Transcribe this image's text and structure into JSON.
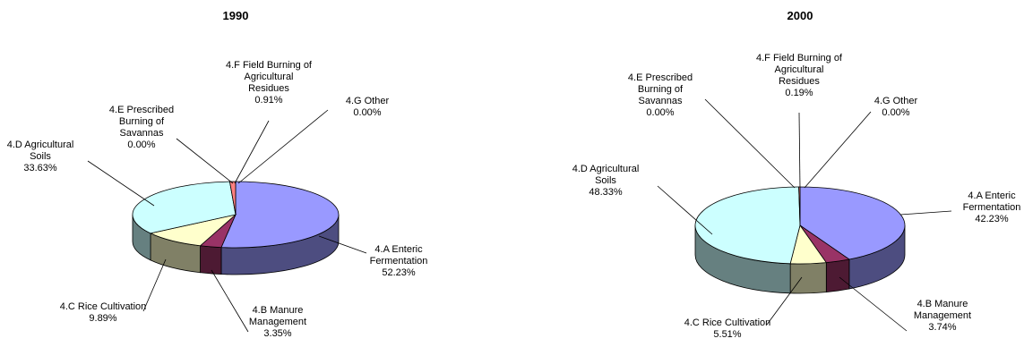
{
  "chart_data": [
    {
      "type": "pie",
      "title": "1990",
      "categories": [
        "4.A Enteric Fermentation",
        "4.B Manure Management",
        "4.C Rice Cultivation",
        "4.D Agricultural Soils",
        "4.E Prescribed Burning of Savannas",
        "4.F Field Burning of Agricultural Residues",
        "4.G Other"
      ],
      "values": [
        52.23,
        3.35,
        9.89,
        33.63,
        0.0,
        0.91,
        0.0
      ],
      "value_labels": [
        "52.23%",
        "3.35%",
        "9.89%",
        "33.63%",
        "0.00%",
        "0.91%",
        "0.00%"
      ],
      "label_lines": [
        [
          "4.A Enteric",
          "Fermentation"
        ],
        [
          "4.B Manure",
          "Management"
        ],
        [
          "4.C Rice Cultivation"
        ],
        [
          "4.D Agricultural",
          "Soils"
        ],
        [
          "4.E Prescribed",
          "Burning of",
          "Savannas"
        ],
        [
          "4.F Field Burning of",
          "Agricultural",
          "Residues"
        ],
        [
          "4.G Other"
        ]
      ],
      "colors": [
        "#9999ff",
        "#993366",
        "#ffffcc",
        "#ccffff",
        "#660066",
        "#ff8080",
        "#0066cc"
      ],
      "style": "3d-pie"
    },
    {
      "type": "pie",
      "title": "2000",
      "categories": [
        "4.A Enteric Fermentation",
        "4.B Manure Management",
        "4.C Rice Cultivation",
        "4.D Agricultural Soils",
        "4.E Prescribed Burning of Savannas",
        "4.F Field Burning of Agricultural Residues",
        "4.G Other"
      ],
      "values": [
        42.23,
        3.74,
        5.51,
        48.33,
        0.0,
        0.19,
        0.0
      ],
      "value_labels": [
        "42.23%",
        "3.74%",
        "5.51%",
        "48.33%",
        "0.00%",
        "0.19%",
        "0.00%"
      ],
      "label_lines": [
        [
          "4.A Enteric",
          "Fermentation"
        ],
        [
          "4.B Manure",
          "Management"
        ],
        [
          "4.C Rice Cultivation"
        ],
        [
          "4.D Agricultural",
          "Soils"
        ],
        [
          "4.E Prescribed",
          "Burning of",
          "Savannas"
        ],
        [
          "4.F Field Burning of",
          "Agricultural",
          "Residues"
        ],
        [
          "4.G Other"
        ]
      ],
      "colors": [
        "#9999ff",
        "#993366",
        "#ffffcc",
        "#ccffff",
        "#660066",
        "#ff8080",
        "#0066cc"
      ],
      "style": "3d-pie"
    }
  ]
}
